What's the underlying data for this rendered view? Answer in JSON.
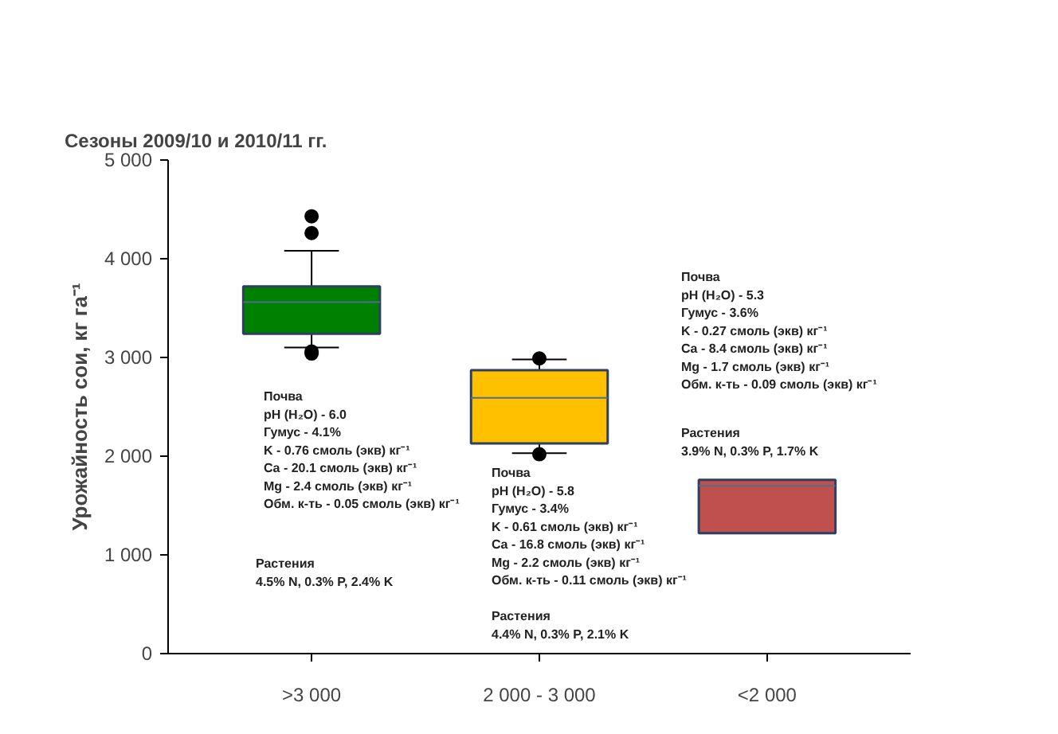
{
  "chart_data": {
    "type": "box",
    "title": "Сезоны 2009/10 и 2010/11 гг.",
    "ylabel": "Урожайность сои, кг га⁻¹",
    "categories": [
      ">3 000",
      "2 000 - 3 000",
      "<2 000"
    ],
    "colors": [
      "#008000",
      "#ffc000",
      "#c0504d"
    ],
    "boxes": [
      {
        "low": 3100,
        "q1": 3240,
        "median": 3560,
        "q3": 3720,
        "high": 4080,
        "outliers": [
          4430,
          4260,
          3060,
          3040
        ]
      },
      {
        "low": 2030,
        "q1": 2130,
        "median": 2590,
        "q3": 2870,
        "high": 2980,
        "outliers": [
          2990,
          2020
        ]
      },
      {
        "low": 1220,
        "q1": 1220,
        "median": 1700,
        "q3": 1760,
        "high": 1760
      }
    ],
    "ylim": [
      0,
      5000
    ],
    "yticks": [
      0,
      {
        "value": 1000,
        "label": "1 000"
      },
      {
        "value": 2000,
        "label": "2 000"
      },
      {
        "value": 3000,
        "label": "3 000"
      },
      {
        "value": 4000,
        "label": "4 000"
      },
      {
        "value": 5000,
        "label": "5 000"
      }
    ],
    "annotations": [
      "Почва\npH (H₂O) - 6.0\nГумус - 4.1%\nK - 0.76 смоль (экв) кг⁻¹\nCa - 20.1 смоль (экв) кг⁻¹\nMg - 2.4 смоль (экв) кг⁻¹\nОбм. к-ть - 0.05 смоль (экв) кг⁻¹",
      "Растения\n4.5% N, 0.3% P, 2.4% K",
      "Почва\npH (H₂O) - 5.8\nГумус - 3.4%\nK - 0.61 смоль (экв) кг⁻¹\nCa - 16.8 смоль (экв) кг⁻¹\nMg - 2.2 смоль (экв) кг⁻¹\nОбм. к-ть - 0.11 смоль (экв) кг⁻¹",
      "Растения\n4.4% N, 0.3% P, 2.1% K",
      "Почва\npH (H₂O) - 5.3\nГумус - 3.6%\nK - 0.27 смоль (экв) кг⁻¹\nCa - 8.4 смоль (экв) кг⁻¹\nMg - 1.7 смоль (экв) кг⁻¹\nОбм. к-ть - 0.09 смоль (экв) кг⁻¹",
      "Растения\n3.9% N, 0.3% P, 1.7% K"
    ]
  }
}
